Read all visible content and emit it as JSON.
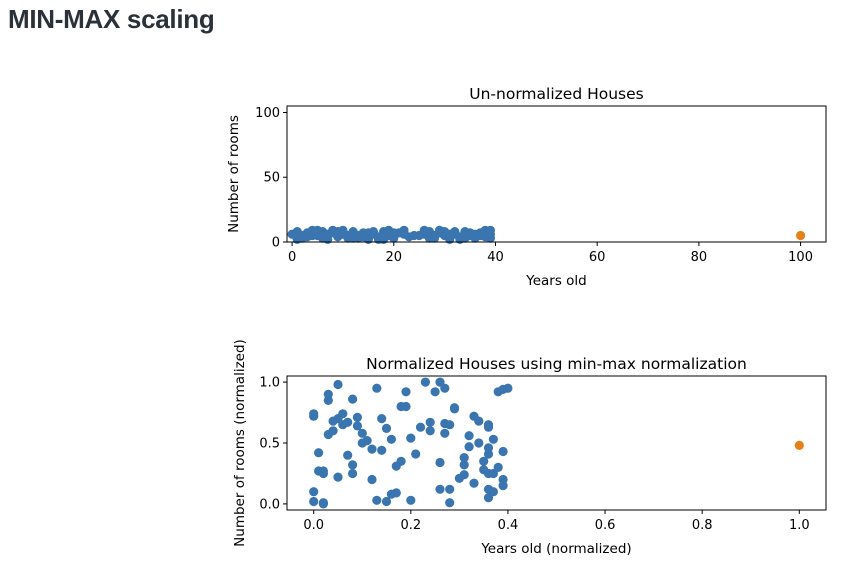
{
  "heading": "MIN-MAX scaling",
  "colors": {
    "primary": "#3a75b0",
    "outlier": "#e8801a"
  },
  "chart_data": [
    {
      "type": "scatter",
      "title": "Un-normalized Houses",
      "xlabel": "Years old",
      "ylabel": "Number of rooms",
      "xlim": [
        -1,
        105
      ],
      "ylim": [
        0,
        105
      ],
      "xticks": [
        0,
        20,
        40,
        60,
        80,
        100
      ],
      "yticks": [
        0,
        50,
        100
      ],
      "grid": false,
      "series": [
        {
          "points": [
            [
              0,
              6
            ],
            [
              1,
              8
            ],
            [
              2,
              3
            ],
            [
              3,
              7
            ],
            [
              4,
              9
            ],
            [
              5,
              5
            ],
            [
              6,
              8
            ],
            [
              7,
              2
            ],
            [
              8,
              7
            ],
            [
              9,
              4
            ],
            [
              10,
              6
            ],
            [
              11,
              3
            ],
            [
              12,
              8
            ],
            [
              13,
              5
            ],
            [
              14,
              7
            ],
            [
              15,
              2
            ],
            [
              16,
              6
            ],
            [
              17,
              4
            ],
            [
              18,
              8
            ],
            [
              19,
              5
            ],
            [
              20,
              3
            ],
            [
              21,
              7
            ],
            [
              22,
              9
            ],
            [
              23,
              4
            ],
            [
              26,
              6
            ],
            [
              27,
              8
            ],
            [
              28,
              3
            ],
            [
              29,
              7
            ],
            [
              30,
              5
            ],
            [
              31,
              2
            ],
            [
              32,
              6
            ],
            [
              33,
              4
            ],
            [
              34,
              8
            ],
            [
              35,
              7
            ],
            [
              36,
              3
            ],
            [
              37,
              5
            ],
            [
              38,
              9
            ],
            [
              39,
              6
            ],
            [
              1,
              2
            ],
            [
              3,
              4
            ],
            [
              5,
              9
            ],
            [
              7,
              6
            ],
            [
              9,
              8
            ],
            [
              11,
              5
            ],
            [
              13,
              3
            ],
            [
              15,
              7
            ],
            [
              17,
              2
            ],
            [
              19,
              9
            ],
            [
              25,
              5
            ],
            [
              27,
              3
            ],
            [
              29,
              9
            ],
            [
              31,
              6
            ],
            [
              33,
              2
            ],
            [
              35,
              5
            ],
            [
              37,
              7
            ],
            [
              39,
              9
            ],
            [
              2,
              5
            ],
            [
              6,
              3
            ],
            [
              10,
              9
            ],
            [
              14,
              4
            ],
            [
              18,
              2
            ],
            [
              22,
              6
            ],
            [
              26,
              9
            ],
            [
              30,
              8
            ],
            [
              34,
              3
            ],
            [
              38,
              4
            ],
            [
              4,
              5
            ],
            [
              8,
              9
            ],
            [
              12,
              3
            ],
            [
              16,
              8
            ],
            [
              20,
              7
            ],
            [
              24,
              5
            ],
            [
              28,
              5
            ],
            [
              32,
              8
            ],
            [
              36,
              6
            ],
            [
              39,
              3
            ]
          ]
        },
        {
          "points": [
            [
              100,
              5
            ]
          ],
          "outlier": true
        }
      ]
    },
    {
      "type": "scatter",
      "title": "Normalized Houses using min-max normalization",
      "xlabel": "Years old (normalized)",
      "ylabel": "Number of rooms (normalized)",
      "xlim": [
        -0.055,
        1.055
      ],
      "ylim": [
        -0.05,
        1.05
      ],
      "xticks": [
        0.0,
        0.2,
        0.4,
        0.6,
        0.8,
        1.0
      ],
      "yticks": [
        0.0,
        0.5,
        1.0
      ],
      "grid": false,
      "series": [
        {
          "points": [
            [
              0.0,
              0.74
            ],
            [
              0.0,
              0.72
            ],
            [
              0.0,
              0.1
            ],
            [
              0.0,
              0.02
            ],
            [
              0.01,
              0.27
            ],
            [
              0.01,
              0.42
            ],
            [
              0.02,
              0.01
            ],
            [
              0.02,
              0.0
            ],
            [
              0.02,
              0.25
            ],
            [
              0.02,
              0.27
            ],
            [
              0.03,
              0.57
            ],
            [
              0.03,
              0.85
            ],
            [
              0.03,
              0.9
            ],
            [
              0.04,
              0.68
            ],
            [
              0.04,
              0.6
            ],
            [
              0.05,
              0.98
            ],
            [
              0.05,
              0.7
            ],
            [
              0.05,
              0.22
            ],
            [
              0.06,
              0.65
            ],
            [
              0.06,
              0.74
            ],
            [
              0.07,
              0.4
            ],
            [
              0.07,
              0.67
            ],
            [
              0.08,
              0.86
            ],
            [
              0.08,
              0.25
            ],
            [
              0.08,
              0.32
            ],
            [
              0.09,
              0.64
            ],
            [
              0.09,
              0.71
            ],
            [
              0.1,
              0.5
            ],
            [
              0.1,
              0.58
            ],
            [
              0.11,
              0.52
            ],
            [
              0.12,
              0.2
            ],
            [
              0.12,
              0.45
            ],
            [
              0.13,
              0.03
            ],
            [
              0.13,
              0.95
            ],
            [
              0.14,
              0.7
            ],
            [
              0.14,
              0.44
            ],
            [
              0.15,
              0.62
            ],
            [
              0.15,
              0.02
            ],
            [
              0.16,
              0.53
            ],
            [
              0.16,
              0.08
            ],
            [
              0.17,
              0.31
            ],
            [
              0.17,
              0.09
            ],
            [
              0.18,
              0.35
            ],
            [
              0.18,
              0.8
            ],
            [
              0.19,
              0.8
            ],
            [
              0.19,
              0.92
            ],
            [
              0.2,
              0.54
            ],
            [
              0.2,
              0.03
            ],
            [
              0.21,
              0.41
            ],
            [
              0.22,
              0.63
            ],
            [
              0.23,
              1.0
            ],
            [
              0.24,
              0.6
            ],
            [
              0.24,
              0.67
            ],
            [
              0.25,
              0.92
            ],
            [
              0.26,
              0.12
            ],
            [
              0.26,
              0.34
            ],
            [
              0.26,
              1.0
            ],
            [
              0.27,
              0.58
            ],
            [
              0.27,
              0.66
            ],
            [
              0.27,
              0.95
            ],
            [
              0.28,
              0.12
            ],
            [
              0.28,
              0.01
            ],
            [
              0.28,
              0.65
            ],
            [
              0.29,
              0.79
            ],
            [
              0.29,
              0.78
            ],
            [
              0.3,
              0.21
            ],
            [
              0.31,
              0.32
            ],
            [
              0.31,
              0.38
            ],
            [
              0.31,
              0.24
            ],
            [
              0.32,
              0.56
            ],
            [
              0.32,
              0.47
            ],
            [
              0.33,
              0.72
            ],
            [
              0.33,
              0.17
            ],
            [
              0.34,
              0.68
            ],
            [
              0.34,
              0.5
            ],
            [
              0.35,
              0.28
            ],
            [
              0.35,
              0.35
            ],
            [
              0.36,
              0.65
            ],
            [
              0.36,
              0.63
            ],
            [
              0.36,
              0.46
            ],
            [
              0.36,
              0.41
            ],
            [
              0.36,
              0.25
            ],
            [
              0.36,
              0.12
            ],
            [
              0.36,
              0.05
            ],
            [
              0.37,
              0.53
            ],
            [
              0.37,
              0.1
            ],
            [
              0.37,
              0.25
            ],
            [
              0.38,
              0.92
            ],
            [
              0.38,
              0.3
            ],
            [
              0.39,
              0.15
            ],
            [
              0.39,
              0.43
            ],
            [
              0.39,
              0.2
            ],
            [
              0.4,
              0.95
            ],
            [
              0.39,
              0.94
            ]
          ]
        },
        {
          "points": [
            [
              1.0,
              0.48
            ]
          ],
          "outlier": true
        }
      ]
    }
  ]
}
